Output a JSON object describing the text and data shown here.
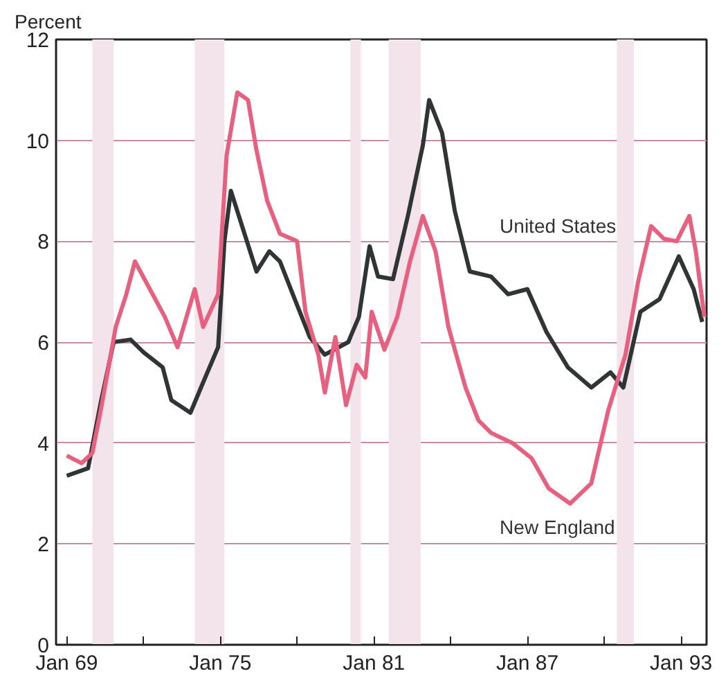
{
  "chart_data": {
    "type": "line",
    "ylabel": "Percent",
    "xlim": [
      "1968-08",
      "1994-01"
    ],
    "ylim": [
      0,
      12
    ],
    "xticks": [
      {
        "value": "1969-01",
        "label": "Jan 69"
      },
      {
        "value": "1972-01",
        "label": null
      },
      {
        "value": "1975-01",
        "label": "Jan 75"
      },
      {
        "value": "1978-01",
        "label": null
      },
      {
        "value": "1981-01",
        "label": "Jan 81"
      },
      {
        "value": "1984-01",
        "label": null
      },
      {
        "value": "1987-01",
        "label": "Jan 87"
      },
      {
        "value": "1990-01",
        "label": null
      },
      {
        "value": "1993-01",
        "label": "Jan 93"
      }
    ],
    "yticks": [
      0,
      2,
      4,
      6,
      8,
      10,
      12
    ],
    "grid": "y",
    "marker": "none",
    "line_style": "solid",
    "bands": [
      {
        "axis": "x",
        "from": "1970-01",
        "to": "1970-11",
        "color": "#f3e4ec"
      },
      {
        "axis": "x",
        "from": "1974-01",
        "to": "1975-03",
        "color": "#f3e4ec"
      },
      {
        "axis": "x",
        "from": "1980-02",
        "to": "1980-07",
        "color": "#f3e4ec"
      },
      {
        "axis": "x",
        "from": "1981-08",
        "to": "1982-11",
        "color": "#f3e4ec"
      },
      {
        "axis": "x",
        "from": "1990-07",
        "to": "1991-03",
        "color": "#f3e4ec"
      }
    ],
    "series": [
      {
        "name": "United States",
        "color": "#2f3535",
        "x": [
          "1969-01",
          "1969-11",
          "1970-05",
          "1970-11",
          "1971-07",
          "1972-01",
          "1972-10",
          "1973-02",
          "1973-11",
          "1974-05",
          "1974-12",
          "1975-03",
          "1975-06",
          "1975-12",
          "1976-06",
          "1976-12",
          "1977-05",
          "1977-11",
          "1978-07",
          "1979-02",
          "1980-01",
          "1980-06",
          "1980-11",
          "1981-03",
          "1981-10",
          "1982-05",
          "1982-12",
          "1983-03",
          "1983-09",
          "1984-03",
          "1984-10",
          "1985-08",
          "1986-04",
          "1987-01",
          "1987-10",
          "1988-08",
          "1989-07",
          "1990-04",
          "1990-10",
          "1991-06",
          "1992-03",
          "1992-12",
          "1993-07",
          "1993-11"
        ],
        "values": [
          3.35,
          3.5,
          4.8,
          6.0,
          6.05,
          5.8,
          5.5,
          4.85,
          4.6,
          5.2,
          5.9,
          8.0,
          9.0,
          8.2,
          7.4,
          7.8,
          7.6,
          6.95,
          6.1,
          5.75,
          6.0,
          6.5,
          7.9,
          7.3,
          7.25,
          8.5,
          9.9,
          10.8,
          10.15,
          8.6,
          7.4,
          7.3,
          6.95,
          7.05,
          6.2,
          5.5,
          5.1,
          5.4,
          5.1,
          6.6,
          6.85,
          7.7,
          7.05,
          6.4
        ]
      },
      {
        "name": "New England",
        "color": "#e8607f",
        "x": [
          "1969-01",
          "1969-08",
          "1970-01",
          "1970-05",
          "1970-12",
          "1971-05",
          "1971-09",
          "1972-04",
          "1972-11",
          "1973-05",
          "1974-01",
          "1974-05",
          "1974-12",
          "1975-04",
          "1975-09",
          "1976-02",
          "1976-06",
          "1976-11",
          "1977-05",
          "1978-01",
          "1978-05",
          "1978-11",
          "1979-02",
          "1979-07",
          "1979-12",
          "1980-05",
          "1980-09",
          "1980-12",
          "1981-06",
          "1981-12",
          "1982-06",
          "1982-12",
          "1983-06",
          "1983-12",
          "1984-08",
          "1985-02",
          "1985-08",
          "1986-06",
          "1987-03",
          "1987-11",
          "1988-09",
          "1989-07",
          "1990-03",
          "1990-11",
          "1991-05",
          "1991-11",
          "1992-05",
          "1992-11",
          "1993-05",
          "1993-08",
          "1993-12"
        ],
        "values": [
          3.75,
          3.6,
          3.8,
          4.65,
          6.3,
          6.95,
          7.6,
          7.05,
          6.5,
          5.9,
          7.05,
          6.3,
          6.95,
          9.7,
          10.95,
          10.8,
          9.8,
          8.8,
          8.15,
          8.0,
          6.6,
          5.75,
          5.0,
          6.1,
          4.75,
          5.55,
          5.3,
          6.6,
          5.85,
          6.5,
          7.6,
          8.5,
          7.8,
          6.3,
          5.1,
          4.45,
          4.2,
          4.0,
          3.7,
          3.1,
          2.8,
          3.2,
          4.65,
          5.75,
          7.2,
          8.3,
          8.05,
          8.0,
          8.5,
          7.8,
          6.5
        ]
      }
    ]
  }
}
